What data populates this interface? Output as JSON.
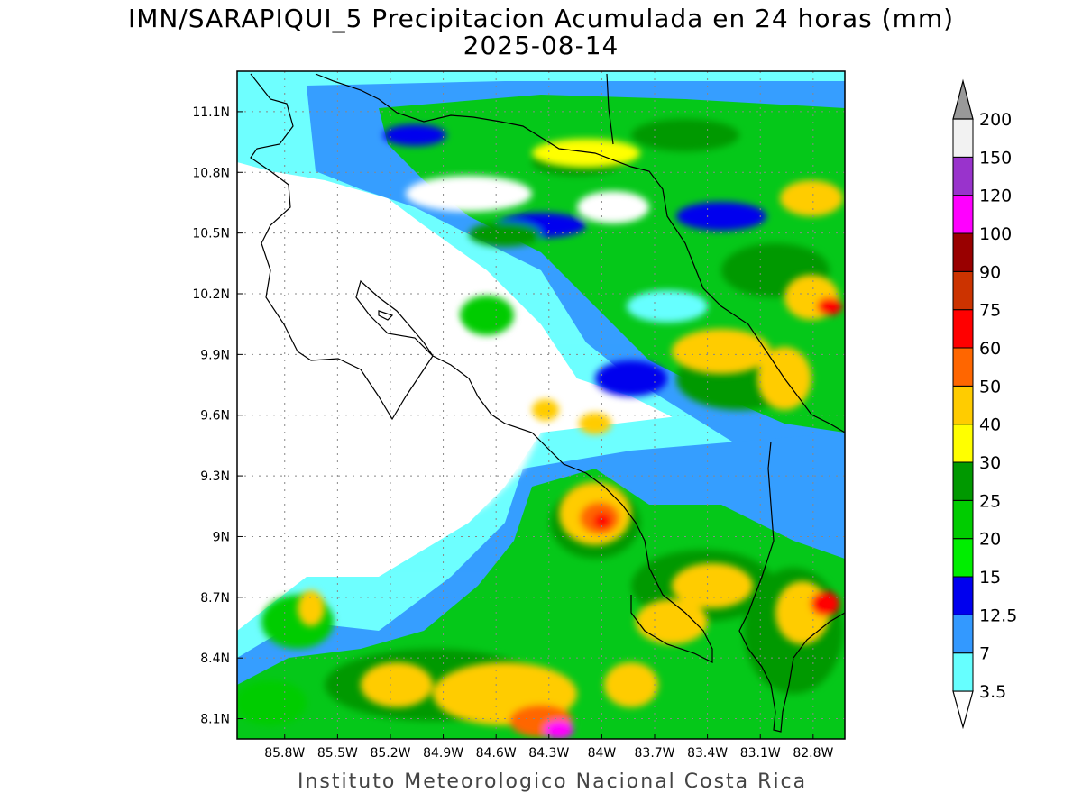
{
  "title": {
    "line1": "IMN/SARAPIQUI_5 Precipitacion Acumulada en 24 horas (mm)",
    "line2": "2025-08-14"
  },
  "footer": "Instituto Meteorologico Nacional Costa Rica",
  "map": {
    "lon_range": [
      -86.07,
      -82.62
    ],
    "lat_range": [
      8.0,
      11.3
    ],
    "lat_ticks": [
      "11.1N",
      "10.8N",
      "10.5N",
      "10.2N",
      "9.9N",
      "9.6N",
      "9.3N",
      "9N",
      "8.7N",
      "8.4N",
      "8.1N"
    ],
    "lon_ticks": [
      "85.8W",
      "85.5W",
      "85.2W",
      "84.9W",
      "84.6W",
      "84.3W",
      "84W",
      "83.7W",
      "83.4W",
      "83.1W",
      "82.8W"
    ]
  },
  "colorbar": {
    "levels": [
      "3.5",
      "7",
      "12.5",
      "15",
      "20",
      "25",
      "30",
      "40",
      "50",
      "60",
      "75",
      "90",
      "100",
      "120",
      "150",
      "200"
    ],
    "colors": [
      "#66ffff",
      "#3399ff",
      "#0000ee",
      "#00ee00",
      "#00cc00",
      "#009900",
      "#ffff00",
      "#ffcc00",
      "#ff6600",
      "#ff0000",
      "#cc3300",
      "#990000",
      "#ff00ff",
      "#9933cc",
      "#f2f2f2",
      "#999999"
    ]
  }
}
